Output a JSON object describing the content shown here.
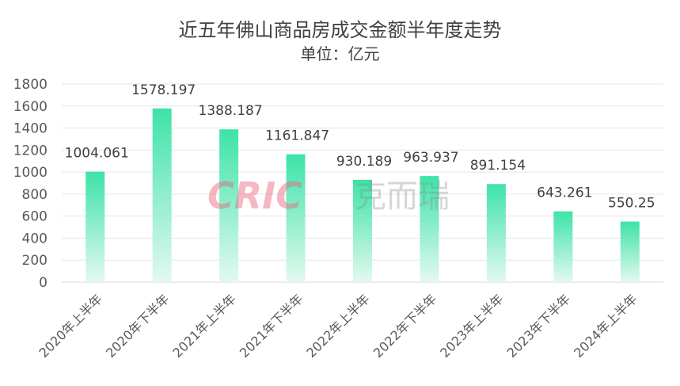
{
  "chart_data": {
    "type": "bar",
    "title": "近五年佛山商品房成交金额半年度走势",
    "subtitle": "单位：亿元",
    "categories": [
      "2020年上半年",
      "2020年下半年",
      "2021年上半年",
      "2021年下半年",
      "2022年上半年",
      "2022年下半年",
      "2023年上半年",
      "2023年下半年",
      "2024年上半年"
    ],
    "values": [
      1004.061,
      1578.197,
      1388.187,
      1161.847,
      930.189,
      963.937,
      891.154,
      643.261,
      550.25
    ],
    "value_labels": [
      "1004.061",
      "1578.197",
      "1388.187",
      "1161.847",
      "930.189",
      "963.937",
      "891.154",
      "643.261",
      "550.25"
    ],
    "ylim": [
      0,
      1800
    ],
    "yticks": [
      0,
      200,
      400,
      600,
      800,
      1000,
      1200,
      1400,
      1600,
      1800
    ],
    "grid": true,
    "bar_color_top": "#3de3a8",
    "bar_color_bottom": "#e3f9f0"
  },
  "watermark": {
    "text": "CRIC",
    "cn": "克而瑞"
  }
}
